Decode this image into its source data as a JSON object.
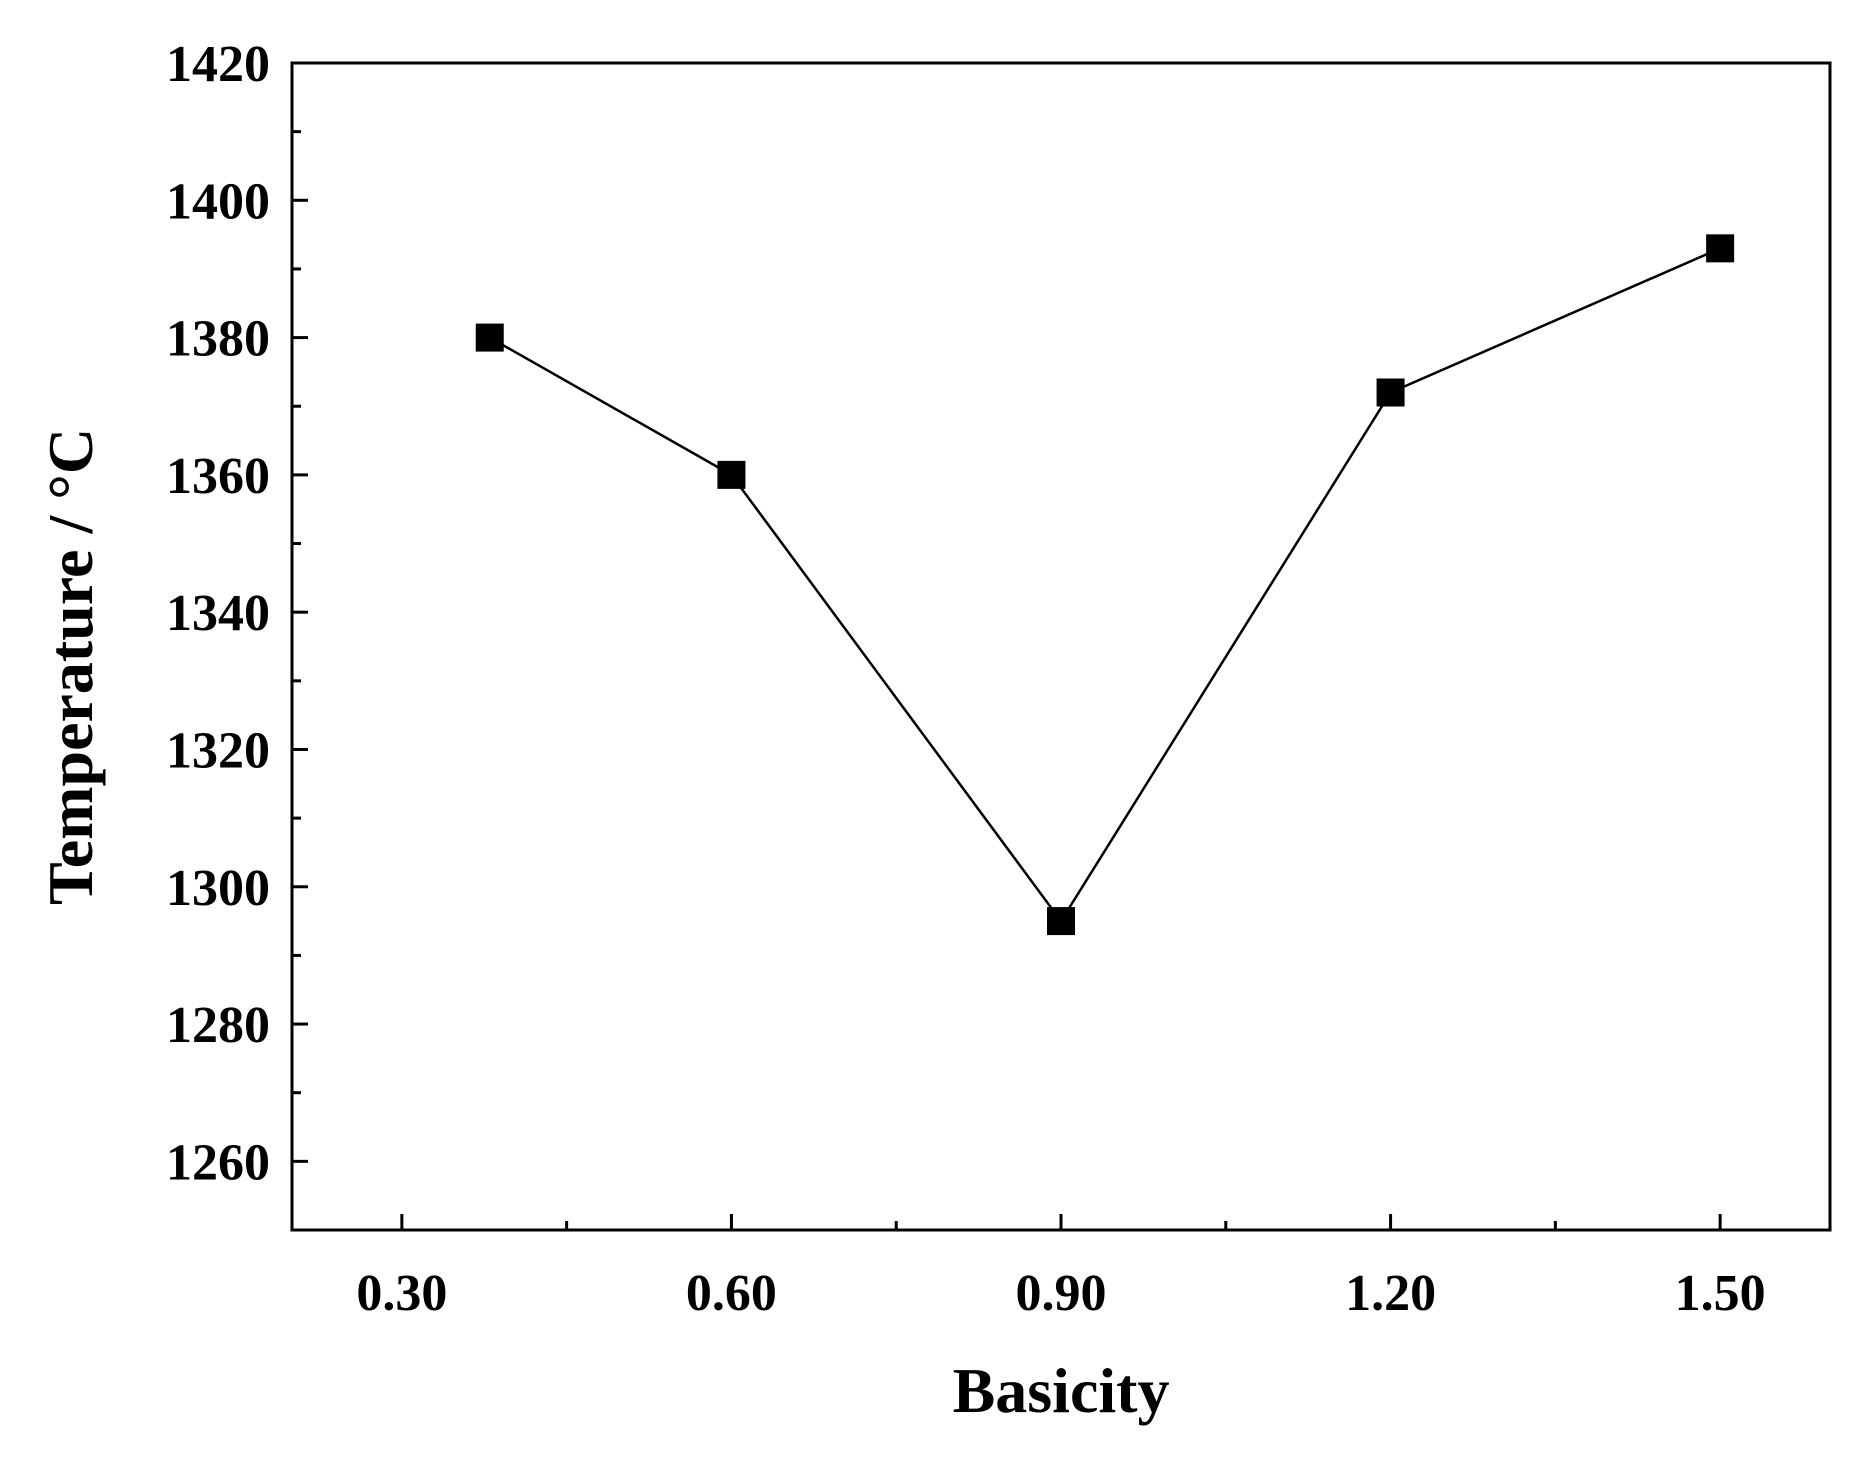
{
  "chart_data": {
    "type": "line",
    "title": "",
    "xlabel": "Basicity",
    "ylabel": "Temperature / °C",
    "xlim": [
      0.2,
      1.6
    ],
    "ylim": [
      1250,
      1420
    ],
    "x_ticks": [
      0.3,
      0.6,
      0.9,
      1.2,
      1.5
    ],
    "x_tick_labels": [
      "0.30",
      "0.60",
      "0.90",
      "1.20",
      "1.50"
    ],
    "x_minor_ticks": [
      0.45,
      0.75,
      1.05,
      1.35
    ],
    "y_ticks": [
      1260,
      1280,
      1300,
      1320,
      1340,
      1360,
      1380,
      1400,
      1420
    ],
    "y_tick_labels": [
      "1260",
      "1280",
      "1300",
      "1320",
      "1340",
      "1360",
      "1380",
      "1400",
      "1420"
    ],
    "y_minor_ticks": [
      1270,
      1290,
      1310,
      1330,
      1350,
      1370,
      1390,
      1410
    ],
    "grid": false,
    "legend": "none",
    "marker": "square",
    "colors": {
      "series": "#000000",
      "axes": "#000000",
      "background": "#ffffff"
    },
    "series": [
      {
        "x": [
          0.38,
          0.6,
          0.9,
          1.2,
          1.5
        ],
        "values": [
          1380,
          1360,
          1295,
          1372,
          1393
        ]
      }
    ]
  }
}
